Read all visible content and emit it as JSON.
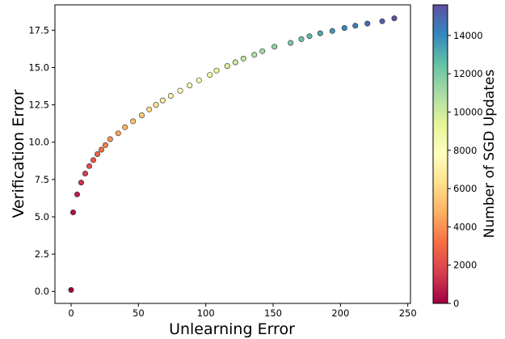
{
  "chart_data": {
    "type": "scatter",
    "xlabel": "Unlearning Error",
    "ylabel": "Verification Error",
    "colorbar_label": "Number of SGD Updates",
    "xlim": [
      -12,
      252
    ],
    "ylim": [
      -0.8,
      19.2
    ],
    "xticks": [
      0,
      50,
      100,
      150,
      200,
      250
    ],
    "yticks": [
      0.0,
      2.5,
      5.0,
      7.5,
      10.0,
      12.5,
      15.0,
      17.5
    ],
    "ytick_labels": [
      "0.0",
      "2.5",
      "5.0",
      "7.5",
      "10.0",
      "12.5",
      "15.0",
      "17.5"
    ],
    "colorbar_range": [
      0,
      15600
    ],
    "colorbar_ticks": [
      0,
      2000,
      4000,
      6000,
      8000,
      10000,
      12000,
      14000
    ],
    "colormap": "Spectral",
    "grid": false,
    "points": [
      {
        "x": 0.0,
        "y": 0.1,
        "updates": 0
      },
      {
        "x": 1.5,
        "y": 5.3,
        "updates": 400
      },
      {
        "x": 4.5,
        "y": 6.5,
        "updates": 800
      },
      {
        "x": 7.5,
        "y": 7.3,
        "updates": 1200
      },
      {
        "x": 10.5,
        "y": 7.9,
        "updates": 1600
      },
      {
        "x": 13.5,
        "y": 8.4,
        "updates": 2000
      },
      {
        "x": 16.5,
        "y": 8.8,
        "updates": 2400
      },
      {
        "x": 19.5,
        "y": 9.2,
        "updates": 2800
      },
      {
        "x": 22.5,
        "y": 9.5,
        "updates": 3200
      },
      {
        "x": 25.5,
        "y": 9.8,
        "updates": 3600
      },
      {
        "x": 29.0,
        "y": 10.2,
        "updates": 4000
      },
      {
        "x": 35.0,
        "y": 10.6,
        "updates": 4400
      },
      {
        "x": 40.0,
        "y": 11.0,
        "updates": 4800
      },
      {
        "x": 46.0,
        "y": 11.4,
        "updates": 5200
      },
      {
        "x": 52.5,
        "y": 11.8,
        "updates": 5600
      },
      {
        "x": 58.0,
        "y": 12.2,
        "updates": 6000
      },
      {
        "x": 63.0,
        "y": 12.5,
        "updates": 6400
      },
      {
        "x": 68.0,
        "y": 12.8,
        "updates": 6800
      },
      {
        "x": 74.0,
        "y": 13.1,
        "updates": 7200
      },
      {
        "x": 81.0,
        "y": 13.45,
        "updates": 7600
      },
      {
        "x": 88.0,
        "y": 13.8,
        "updates": 8000
      },
      {
        "x": 95.0,
        "y": 14.15,
        "updates": 8400
      },
      {
        "x": 103.0,
        "y": 14.5,
        "updates": 8800
      },
      {
        "x": 108.0,
        "y": 14.8,
        "updates": 9200
      },
      {
        "x": 116.0,
        "y": 15.1,
        "updates": 9600
      },
      {
        "x": 122.0,
        "y": 15.35,
        "updates": 10000
      },
      {
        "x": 128.0,
        "y": 15.6,
        "updates": 10400
      },
      {
        "x": 136.0,
        "y": 15.85,
        "updates": 10800
      },
      {
        "x": 142.0,
        "y": 16.1,
        "updates": 11200
      },
      {
        "x": 151.0,
        "y": 16.4,
        "updates": 11600
      },
      {
        "x": 163.0,
        "y": 16.65,
        "updates": 12000
      },
      {
        "x": 171.0,
        "y": 16.9,
        "updates": 12400
      },
      {
        "x": 177.0,
        "y": 17.1,
        "updates": 12800
      },
      {
        "x": 185.0,
        "y": 17.3,
        "updates": 13200
      },
      {
        "x": 194.0,
        "y": 17.45,
        "updates": 13600
      },
      {
        "x": 203.0,
        "y": 17.65,
        "updates": 14000
      },
      {
        "x": 211.0,
        "y": 17.8,
        "updates": 14400
      },
      {
        "x": 220.0,
        "y": 17.95,
        "updates": 14800
      },
      {
        "x": 231.0,
        "y": 18.1,
        "updates": 15200
      },
      {
        "x": 240.0,
        "y": 18.3,
        "updates": 15600
      }
    ]
  }
}
